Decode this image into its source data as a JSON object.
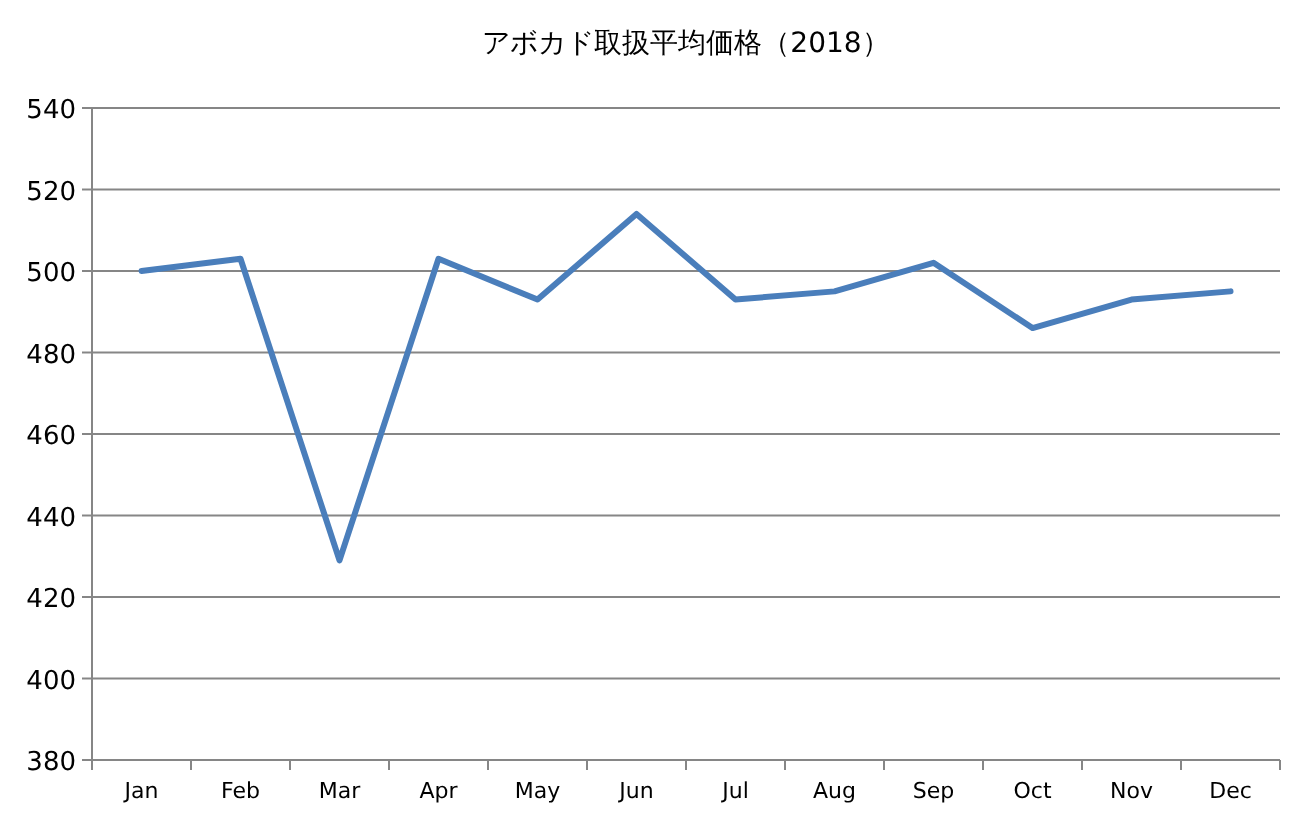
{
  "chart_data": {
    "type": "line",
    "title": "アボカド取扱平均価格（2018）",
    "categories": [
      "Jan",
      "Feb",
      "Mar",
      "Apr",
      "May",
      "Jun",
      "Jul",
      "Aug",
      "Sep",
      "Oct",
      "Nov",
      "Dec"
    ],
    "series": [
      {
        "color": "#4a7ebb",
        "values": [
          500,
          503,
          429,
          503,
          493,
          514,
          493,
          495,
          502,
          486,
          493,
          495
        ]
      }
    ],
    "ylim": [
      380,
      540
    ],
    "yticks": [
      380,
      400,
      420,
      440,
      460,
      480,
      500,
      520,
      540
    ],
    "grid": "y",
    "marker": "none",
    "line_style": "solid"
  }
}
